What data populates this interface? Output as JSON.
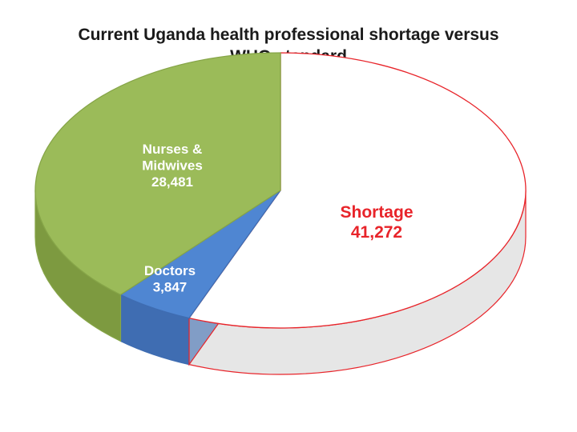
{
  "chart_data": {
    "type": "pie",
    "title_lines": [
      "Current Uganda health professional shortage versus",
      "WHO standard"
    ],
    "slices": [
      {
        "label": "Shortage",
        "value": 41272,
        "value_text": "41,272",
        "color": "#ffffff",
        "side_color": "#e6e6e6",
        "text_color": "#e8242a",
        "stroke": "#e8242a"
      },
      {
        "label": "Doctors",
        "value": 3847,
        "value_text": "3,847",
        "color": "#4f86d2",
        "side_color": "#3f6db2",
        "text_color": "#ffffff",
        "stroke": "#3f6db2"
      },
      {
        "label": "Nurses &\nMidwives",
        "value": 28481,
        "value_text": "28,481",
        "color": "#9bbb59",
        "side_color": "#7d9a40",
        "text_color": "#ffffff",
        "stroke": "#86a548"
      }
    ],
    "start_angle_deg": -90,
    "style": "3d-tilted",
    "legend": "none"
  }
}
